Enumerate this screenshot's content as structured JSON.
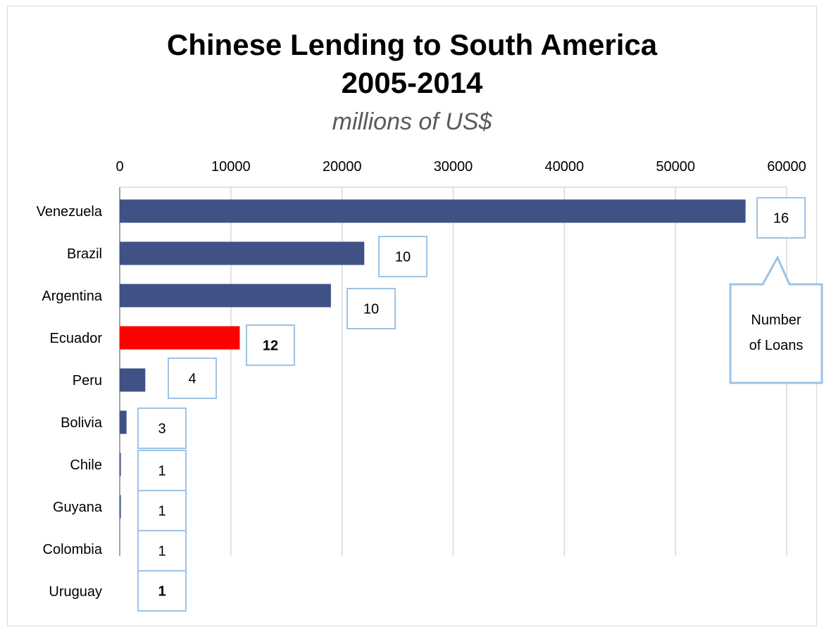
{
  "chart_data": {
    "type": "bar",
    "orientation": "horizontal",
    "title": "Chinese Lending to South America",
    "title_line2": "2005-2014",
    "subtitle": "millions of US$",
    "categories": [
      "Venezuela",
      "Brazil",
      "Argentina",
      "Ecuador",
      "Peru",
      "Bolivia",
      "Chile",
      "Guyana",
      "Colombia",
      "Uruguay"
    ],
    "values": [
      56300,
      22000,
      19000,
      10800,
      2300,
      611,
      100,
      100,
      0,
      0
    ],
    "loan_counts": [
      "16",
      "10",
      "10",
      "12",
      "4",
      "3",
      "1",
      "1",
      "1",
      "1"
    ],
    "loan_counts_bold": [
      false,
      false,
      false,
      true,
      false,
      false,
      false,
      false,
      false,
      true
    ],
    "bar_colors": [
      "#3f5185",
      "#3f5185",
      "#3f5185",
      "#ff0000",
      "#3f5185",
      "#3f5185",
      "#3f5185",
      "#3f5185",
      "#3f5185",
      "#3f5185"
    ],
    "xlim": [
      0,
      60000
    ],
    "x_ticks": [
      "0",
      "10000",
      "20000",
      "30000",
      "40000",
      "50000",
      "60000"
    ],
    "x_axis_position": "top",
    "grid": true,
    "callout_label_line1": "Number",
    "callout_label_line2": "of Loans",
    "colors": {
      "bar": "#3f5185",
      "highlight": "#ff0000",
      "label_box_border": "#9dc3e6",
      "grid": "#d9d9d9"
    }
  }
}
